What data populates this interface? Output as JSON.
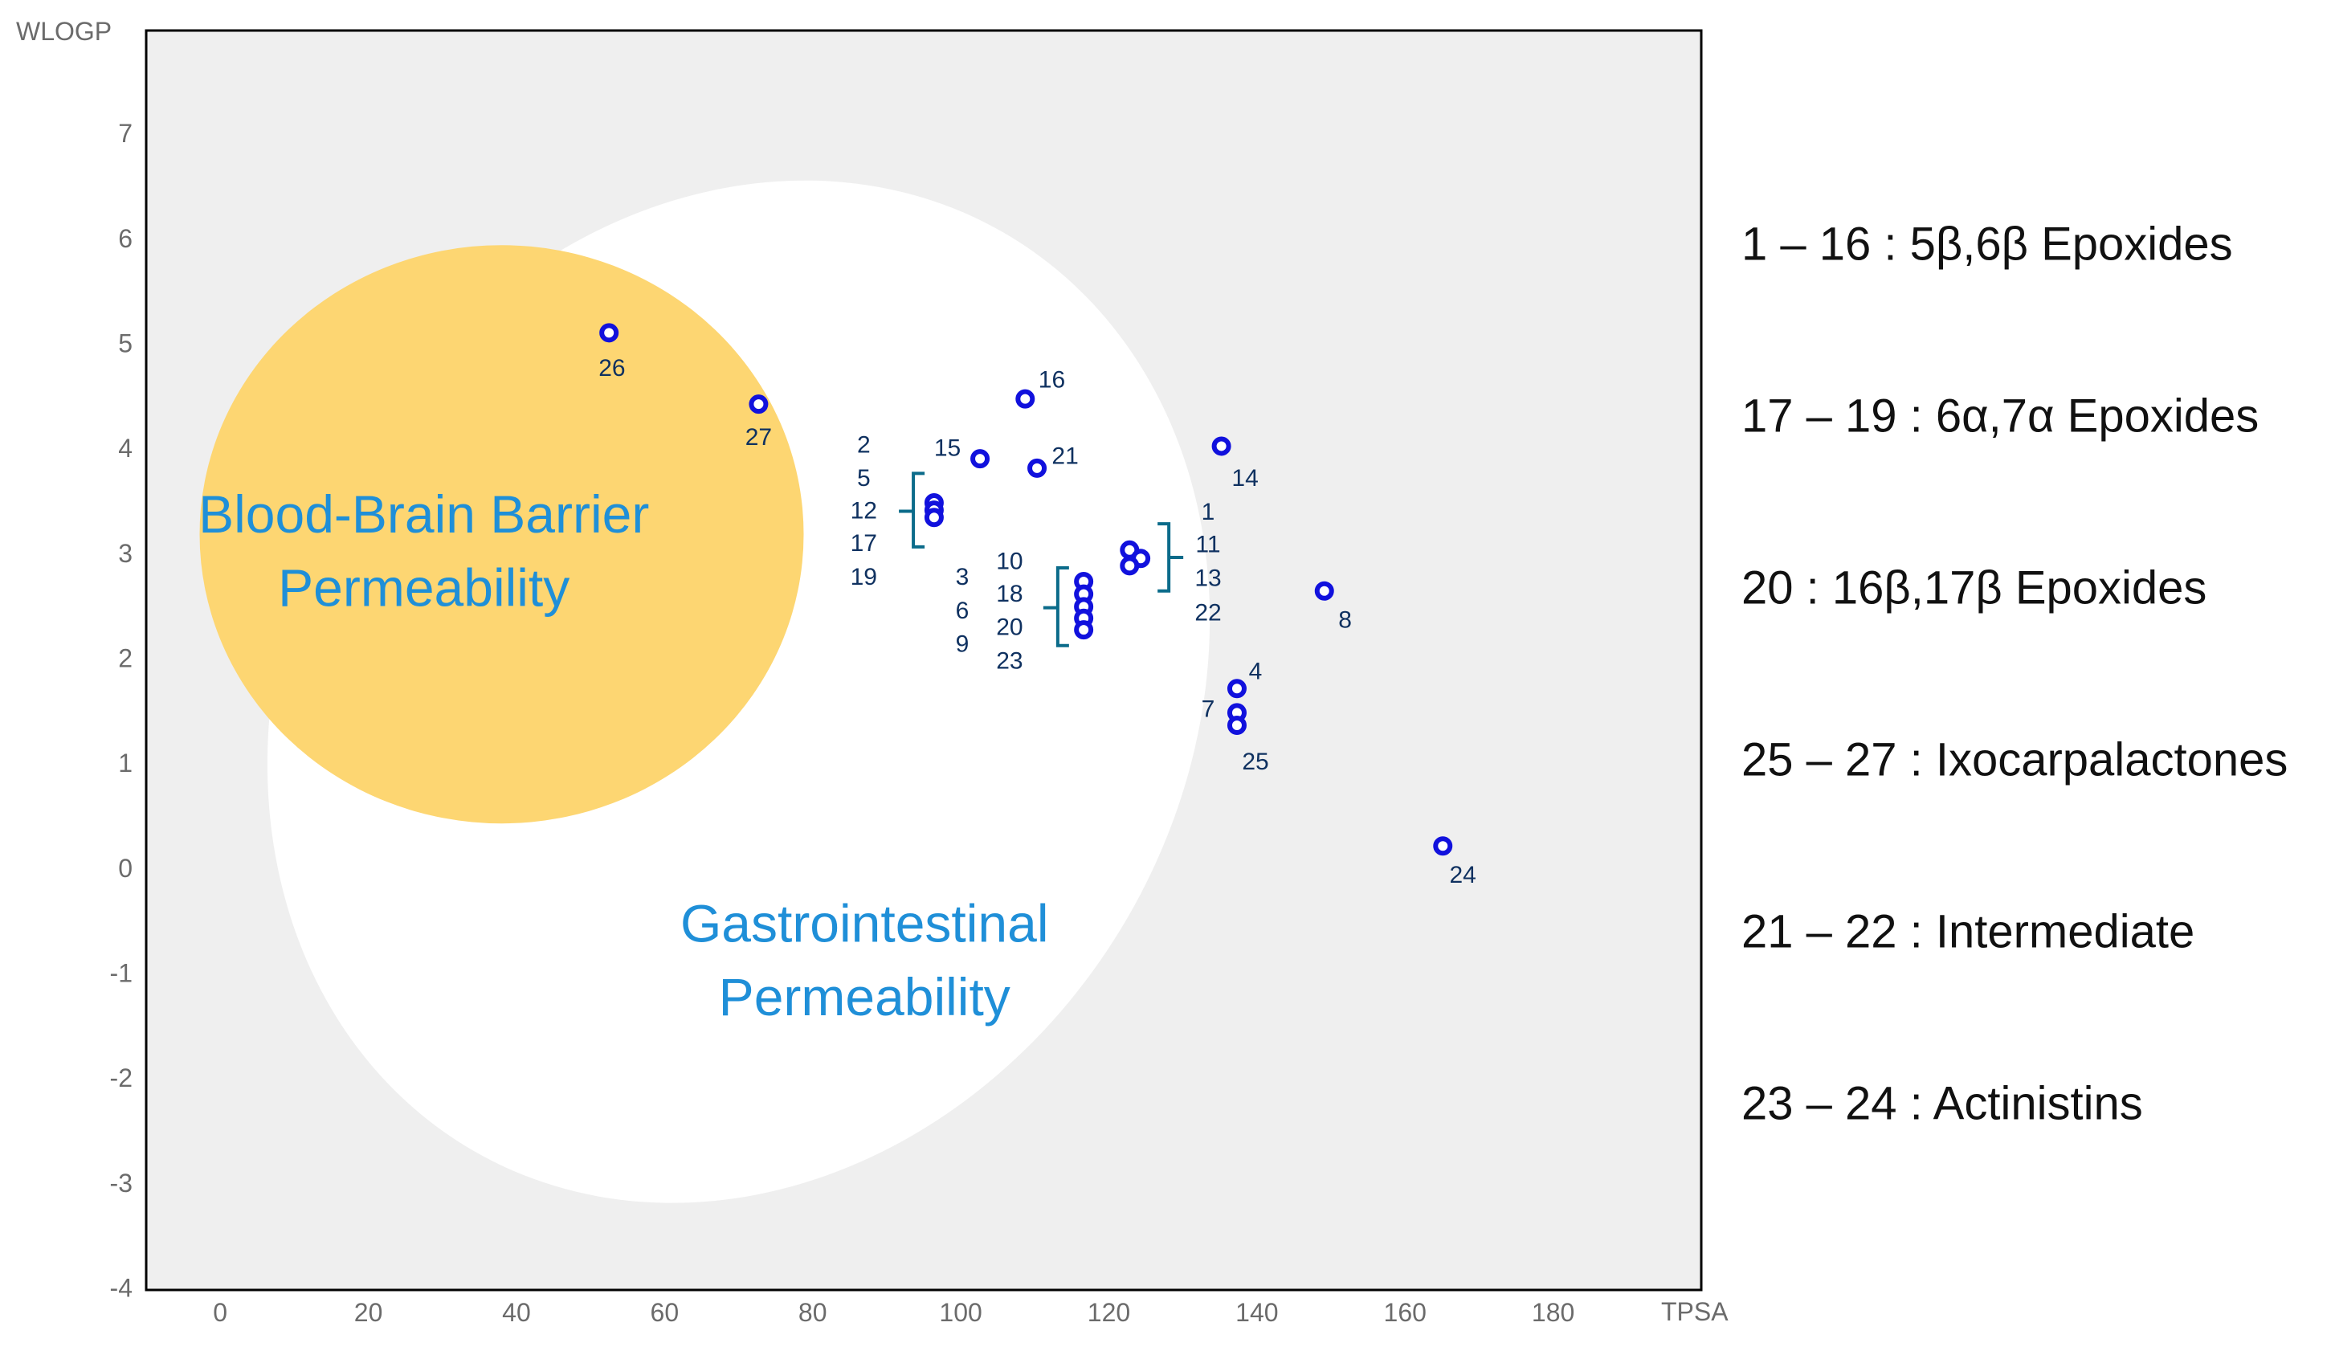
{
  "chart_data": {
    "type": "scatter",
    "title": "",
    "xlabel": "TPSA",
    "ylabel": "WLOGP",
    "xlim": [
      -10,
      200
    ],
    "ylim": [
      -4,
      8
    ],
    "xticks": [
      "0",
      "20",
      "40",
      "60",
      "80",
      "100",
      "120",
      "140",
      "160",
      "180"
    ],
    "yticks": [
      "7",
      "6",
      "5",
      "4",
      "3",
      "2",
      "1",
      "0",
      "-1",
      "-2",
      "-3",
      "-4"
    ],
    "regions": [
      {
        "name": "gastrointestinal",
        "label_lines": [
          "Gastrointestinal",
          "Permeability"
        ],
        "color": "#ffffff"
      },
      {
        "name": "blood-brain-barrier",
        "label_lines": [
          "Blood-Brain Barrier",
          "Permeability"
        ],
        "color": "#fdd672"
      }
    ],
    "points": [
      {
        "id": "26",
        "x": 52.5,
        "y": 5.12
      },
      {
        "id": "27",
        "x": 72.7,
        "y": 4.44
      },
      {
        "id": "16",
        "x": 108.7,
        "y": 4.49
      },
      {
        "id": "15",
        "x": 102.6,
        "y": 3.92
      },
      {
        "id": "21",
        "x": 110.3,
        "y": 3.83
      },
      {
        "id": "14",
        "x": 135.2,
        "y": 4.04
      },
      {
        "id": "8",
        "x": 149.1,
        "y": 2.66
      },
      {
        "id": "24",
        "x": 165.1,
        "y": 0.23
      },
      {
        "id": "2",
        "x": 96.4,
        "y": 3.5
      },
      {
        "id": "5",
        "x": 96.4,
        "y": 3.43
      },
      {
        "id": "12",
        "x": 96.4,
        "y": 3.36
      },
      {
        "id": "1",
        "x": 122.8,
        "y": 3.05
      },
      {
        "id": "11",
        "x": 124.3,
        "y": 2.97
      },
      {
        "id": "13",
        "x": 122.8,
        "y": 2.9
      },
      {
        "id": "10",
        "x": 116.6,
        "y": 2.75
      },
      {
        "id": "18",
        "x": 116.6,
        "y": 2.63
      },
      {
        "id": "3",
        "x": 116.6,
        "y": 2.51
      },
      {
        "id": "20",
        "x": 116.6,
        "y": 2.4
      },
      {
        "id": "6",
        "x": 116.6,
        "y": 2.29
      },
      {
        "id": "4",
        "x": 137.3,
        "y": 1.73
      },
      {
        "id": "7",
        "x": 137.3,
        "y": 1.5
      },
      {
        "id": "25",
        "x": 137.3,
        "y": 1.38
      }
    ],
    "point_labels": [
      {
        "text": "26",
        "x": 52.9,
        "y": 4.77
      },
      {
        "text": "27",
        "x": 72.7,
        "y": 4.11
      },
      {
        "text": "16",
        "x": 112.3,
        "y": 4.66
      },
      {
        "text": "15",
        "x": 98.2,
        "y": 4.01
      },
      {
        "text": "21",
        "x": 114.1,
        "y": 3.93
      },
      {
        "text": "14",
        "x": 138.4,
        "y": 3.72
      },
      {
        "text": "8",
        "x": 151.9,
        "y": 2.37
      },
      {
        "text": "24",
        "x": 167.8,
        "y": -0.06
      },
      {
        "text": "2",
        "x": 86.9,
        "y": 4.04
      },
      {
        "text": "5",
        "x": 86.9,
        "y": 3.72
      },
      {
        "text": "12",
        "x": 86.9,
        "y": 3.41
      },
      {
        "text": "17",
        "x": 86.9,
        "y": 3.1
      },
      {
        "text": "19",
        "x": 86.9,
        "y": 2.78
      },
      {
        "text": "3",
        "x": 100.2,
        "y": 2.78
      },
      {
        "text": "6",
        "x": 100.2,
        "y": 2.46
      },
      {
        "text": "9",
        "x": 100.2,
        "y": 2.14
      },
      {
        "text": "10",
        "x": 106.6,
        "y": 2.93
      },
      {
        "text": "18",
        "x": 106.6,
        "y": 2.62
      },
      {
        "text": "20",
        "x": 106.6,
        "y": 2.3
      },
      {
        "text": "23",
        "x": 106.6,
        "y": 1.98
      },
      {
        "text": "1",
        "x": 133.4,
        "y": 3.4
      },
      {
        "text": "11",
        "x": 133.4,
        "y": 3.09
      },
      {
        "text": "13",
        "x": 133.4,
        "y": 2.77
      },
      {
        "text": "22",
        "x": 133.4,
        "y": 2.44
      },
      {
        "text": "4",
        "x": 139.8,
        "y": 1.88
      },
      {
        "text": "7",
        "x": 133.4,
        "y": 1.52
      },
      {
        "text": "25",
        "x": 139.8,
        "y": 1.02
      }
    ],
    "legend": [
      "1 – 16 : 5β,6β Epoxides",
      "17 – 19 : 6α,7α Epoxides",
      "20 : 16β,17β Epoxides",
      "25 – 27 : Ixocarpalactones",
      "21 – 22 : Intermediate",
      "23 – 24 : Actinistins"
    ]
  }
}
